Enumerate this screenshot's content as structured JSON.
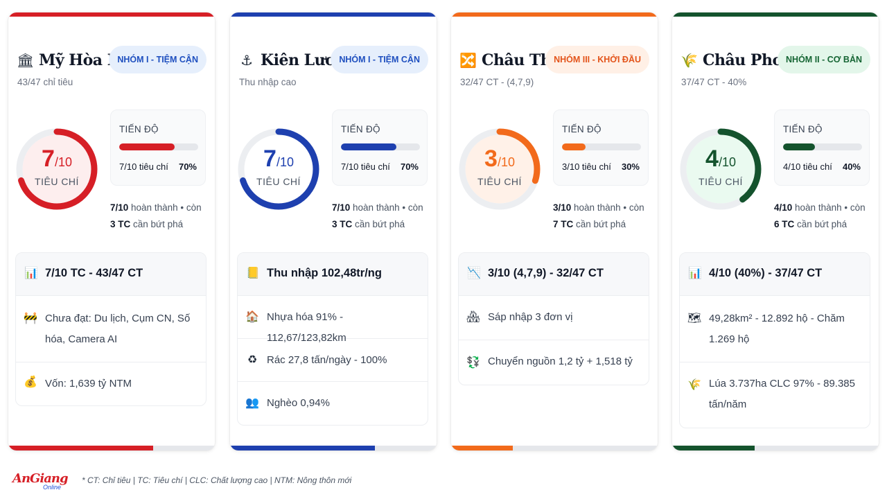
{
  "cards": [
    {
      "name": "Mỹ Hòa Hưng",
      "icon": "bank-icon",
      "icon_glyph": "🏛",
      "badge": "NHÓM I - TIỆM CẬN",
      "subtitle": "43/47 chỉ tiêu",
      "score_num": "7",
      "score_den": "/10",
      "score_label": "TIÊU CHÍ",
      "fraction": 0.7,
      "progress_title": "TIẾN ĐỘ",
      "progress_count": "7/10 tiêu chí",
      "progress_pct": "70%",
      "summary_a_bold": "7/10",
      "summary_a": " hoàn thành • còn",
      "summary_b_bold": "3 TC",
      "summary_b": " cần bứt phá",
      "box_title": "7/10 TC - 43/47 CT",
      "box_icon": "chart-icon",
      "box_glyph": "📊",
      "rows": [
        {
          "icon": "barrier-icon",
          "glyph": "🚧",
          "text": "Chưa đạt: Du lịch, Cụm CN, Số hóa, Camera AI"
        },
        {
          "icon": "money-bag-icon",
          "glyph": "💰",
          "text": "Vốn: 1,639 tỷ NTM"
        }
      ],
      "colors": {
        "accent": "#d61f26",
        "soft": "#fdeeee",
        "badge_bg": "#e6effc",
        "badge_fg": "#1e4fbf"
      }
    },
    {
      "name": "Kiên Lương",
      "icon": "anchor-icon",
      "icon_glyph": "⚓",
      "badge": "NHÓM I - TIỆM CẬN",
      "subtitle": "Thu nhập cao",
      "score_num": "7",
      "score_den": "/10",
      "score_label": "TIÊU CHÍ",
      "fraction": 0.7,
      "progress_title": "TIẾN ĐỘ",
      "progress_count": "7/10 tiêu chí",
      "progress_pct": "70%",
      "summary_a_bold": "7/10",
      "summary_a": " hoàn thành • còn",
      "summary_b_bold": "3 TC",
      "summary_b": " cần bứt phá",
      "box_title": "Thu nhập 102,48tr/ng",
      "box_icon": "ledger-icon",
      "box_glyph": "📒",
      "rows": [
        {
          "icon": "house-icon",
          "glyph": "🏠",
          "text": "Nhựa hóa 91% - 112,67/123,82km"
        },
        {
          "icon": "recycle-icon",
          "glyph": "♻",
          "text": "Rác 27,8 tấn/ngày - 100%"
        },
        {
          "icon": "people-icon",
          "glyph": "👥",
          "text": "Nghèo 0,94%"
        }
      ],
      "colors": {
        "accent": "#1e40af",
        "soft": "#ffffff",
        "badge_bg": "#e6effc",
        "badge_fg": "#1e4fbf"
      }
    },
    {
      "name": "Châu Thành",
      "icon": "merge-icon",
      "icon_glyph": "🔀",
      "badge": "NHÓM III - KHỞI ĐẦU",
      "subtitle": "32/47 CT - (4,7,9)",
      "score_num": "3",
      "score_den": "/10",
      "score_label": "TIÊU CHÍ",
      "fraction": 0.3,
      "progress_title": "TIẾN ĐỘ",
      "progress_count": "3/10 tiêu chí",
      "progress_pct": "30%",
      "summary_a_bold": "3/10",
      "summary_a": " hoàn thành • còn",
      "summary_b_bold": "7 TC",
      "summary_b": " cần bứt phá",
      "box_title": "3/10 (4,7,9) - 32/47 CT",
      "box_icon": "trend-down-icon",
      "box_glyph": "📉",
      "rows": [
        {
          "icon": "buildings-icon",
          "glyph": "🏘",
          "text": "Sáp nhập 3 đơn vị"
        },
        {
          "icon": "transfer-icon",
          "glyph": "💱",
          "text": "Chuyển nguồn 1,2 tỷ + 1,518 tỷ"
        }
      ],
      "colors": {
        "accent": "#f26a1b",
        "soft": "#fff1e8",
        "badge_bg": "#fff0e6",
        "badge_fg": "#e3541b"
      }
    },
    {
      "name": "Châu Phong",
      "icon": "rice-icon",
      "icon_glyph": "🌾",
      "badge": "NHÓM II - CƠ BẢN",
      "subtitle": "37/47 CT - 40%",
      "score_num": "4",
      "score_den": "/10",
      "score_label": "TIÊU CHÍ",
      "fraction": 0.4,
      "progress_title": "TIẾN ĐỘ",
      "progress_count": "4/10 tiêu chí",
      "progress_pct": "40%",
      "summary_a_bold": "4/10",
      "summary_a": " hoàn thành • còn",
      "summary_b_bold": "6 TC",
      "summary_b": " cần bứt phá",
      "box_title": "4/10 (40%) - 37/47 CT",
      "box_icon": "chart-icon",
      "box_glyph": "📊",
      "rows": [
        {
          "icon": "map-icon",
          "glyph": "🗺",
          "text": "49,28km² - 12.892 hộ - Chăm 1.269 hộ"
        },
        {
          "icon": "rice-icon",
          "glyph": "🌾",
          "text": "Lúa 3.737ha CLC 97% - 89.385 tấn/năm"
        }
      ],
      "colors": {
        "accent": "#14532d",
        "soft": "#eafaf0",
        "badge_bg": "#e3f6ea",
        "badge_fg": "#166534"
      }
    }
  ],
  "footer": {
    "logo_main": "AnGiang",
    "logo_sub": "Online",
    "note": "* CT: Chỉ tiêu | TC: Tiêu chí | CLC: Chất lượng cao | NTM: Nông thôn mới"
  }
}
